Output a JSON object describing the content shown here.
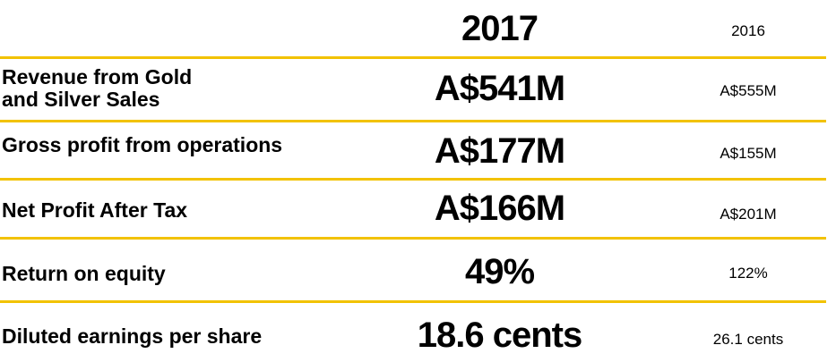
{
  "header": {
    "year_current": "2017",
    "year_previous": "2016"
  },
  "rows": [
    {
      "label_line1": "Revenue from Gold",
      "label_line2": "and Silver Sales",
      "current": "A$541M",
      "previous": "A$555M"
    },
    {
      "label": "Gross profit from operations",
      "current": "A$177M",
      "previous": "A$155M"
    },
    {
      "label": "Net Profit After Tax",
      "current": "A$166M",
      "previous": "A$201M"
    },
    {
      "label": "Return on equity",
      "current": "49%",
      "previous": "122%"
    },
    {
      "label": "Diluted earnings per share",
      "current": "18.6 cents",
      "previous": "26.1 cents"
    }
  ],
  "colors": {
    "divider": "#f2c200",
    "text": "#000000"
  }
}
